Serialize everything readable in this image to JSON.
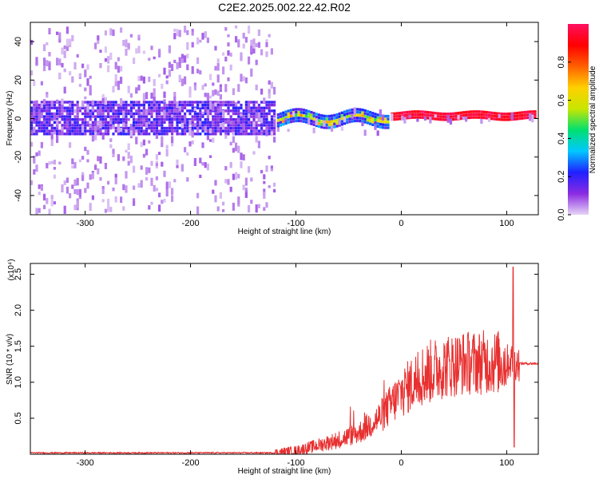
{
  "title": "C2E2.2025.002.22.42.R02",
  "chart_data": [
    {
      "type": "heatmap",
      "xlabel": "Height of straight line (km)",
      "ylabel": "Frequency (Hz)",
      "xlim": [
        -352,
        130
      ],
      "ylim": [
        -50,
        50
      ],
      "xticks": [
        -300,
        -200,
        -100,
        0,
        100
      ],
      "xtick_labels": [
        "-300",
        "-200",
        "-100",
        "0",
        "100"
      ],
      "yticks": [
        -40,
        -20,
        0,
        20,
        40
      ],
      "ytick_labels": [
        "-40",
        "-20",
        "0",
        "20",
        "40"
      ],
      "colorbar": {
        "label": "Normalized spectral amplitude",
        "range": [
          0,
          1
        ],
        "ticks": [
          0.0,
          0.2,
          0.4,
          0.6,
          0.8
        ],
        "tick_labels": [
          "0.0",
          "0.2",
          "0.4",
          "0.6",
          "0.8"
        ],
        "colormap": [
          "#e6d5f5",
          "#8a2be2",
          "#2020ff",
          "#00c8ff",
          "#00e070",
          "#c8e600",
          "#ffd000",
          "#ff6000",
          "#ff0000",
          "#ff1060"
        ]
      },
      "regions": [
        {
          "x_range": [
            -352,
            -118
          ],
          "center_freq": 0,
          "dense_halfwidth": 8,
          "scatter_halfwidth": 48,
          "typical_amplitude": 0.15
        },
        {
          "x_range": [
            -118,
            -10
          ],
          "center_freq": 0,
          "dense_halfwidth": 3,
          "scatter_halfwidth": 8,
          "typical_amplitude": 0.45
        },
        {
          "x_range": [
            -10,
            130
          ],
          "center_freq": 1,
          "dense_halfwidth": 1,
          "scatter_halfwidth": 2,
          "typical_amplitude": 0.95
        }
      ]
    },
    {
      "type": "line",
      "xlabel": "Height of straight line (km)",
      "ylabel": "SNR (10 * v/v)",
      "y_multiplier": "(x10⁴)",
      "xlim": [
        -352,
        130
      ],
      "ylim": [
        0,
        2.65
      ],
      "xticks": [
        -300,
        -200,
        -100,
        0,
        100
      ],
      "xtick_labels": [
        "-300",
        "-200",
        "-100",
        "0",
        "100"
      ],
      "yticks": [
        0.5,
        1.0,
        1.5,
        2.0,
        2.5
      ],
      "ytick_labels": [
        "0.5",
        "1.0",
        "1.5",
        "2.0",
        "2.5"
      ],
      "color": "#e83030",
      "trend": {
        "x": [
          -352,
          -120,
          -100,
          -80,
          -60,
          -40,
          -20,
          0,
          20,
          40,
          60,
          80,
          100,
          106,
          110,
          130
        ],
        "y": [
          0.02,
          0.02,
          0.05,
          0.12,
          0.2,
          0.3,
          0.52,
          0.85,
          1.1,
          1.22,
          1.27,
          1.28,
          1.28,
          1.3,
          1.26,
          1.26
        ]
      },
      "annotations": [
        {
          "x": 106,
          "y": 2.6,
          "note": "spike"
        },
        {
          "x": 106,
          "y": 0.1,
          "note": "dip"
        }
      ]
    }
  ]
}
